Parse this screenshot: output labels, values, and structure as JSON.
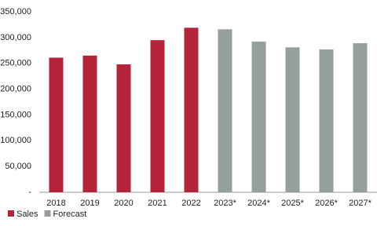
{
  "chart_data": {
    "type": "bar",
    "categories": [
      "2018",
      "2019",
      "2020",
      "2021",
      "2022",
      "2023*",
      "2024*",
      "2025*",
      "2026*",
      "2027*"
    ],
    "series": [
      {
        "name": "Sales",
        "color": "#b5233a",
        "values": [
          261000,
          265000,
          248000,
          295000,
          319000,
          null,
          null,
          null,
          null,
          null
        ]
      },
      {
        "name": "Forecast",
        "color": "#959f9d",
        "values": [
          null,
          null,
          null,
          null,
          null,
          316000,
          292000,
          281000,
          277000,
          289000
        ]
      }
    ],
    "ylim": [
      0,
      350000
    ],
    "yticks": [
      {
        "value": 0,
        "label": "-"
      },
      {
        "value": 50000,
        "label": "50,000"
      },
      {
        "value": 100000,
        "label": "100,000"
      },
      {
        "value": 150000,
        "label": "150,000"
      },
      {
        "value": 200000,
        "label": "200,000"
      },
      {
        "value": 250000,
        "label": "250,000"
      },
      {
        "value": 300000,
        "label": "300,000"
      },
      {
        "value": 350000,
        "label": "350,000"
      }
    ],
    "grid": false,
    "legend": "bottom-left"
  }
}
